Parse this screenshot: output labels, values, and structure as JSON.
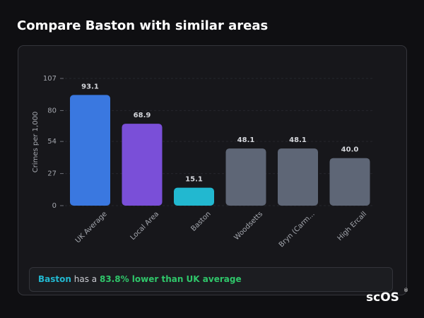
{
  "page_title": "Compare Baston with similar areas",
  "chart_data": {
    "type": "bar",
    "y_label": "Crimes per 1,000",
    "categories": [
      "UK Average",
      "Local Area",
      "Baston",
      "Woodsetts",
      "Bryn (Carm...",
      "High Ercall"
    ],
    "values": [
      93.1,
      68.9,
      15.1,
      48.1,
      48.1,
      40.0
    ],
    "value_labels": [
      "93.1",
      "68.9",
      "15.1",
      "48.1",
      "48.1",
      "40.0"
    ],
    "colors": [
      "#3a78e0",
      "#7a4fd8",
      "#22b8d0",
      "#5e6676",
      "#5e6676",
      "#5e6676"
    ],
    "ylim": [
      0,
      107
    ],
    "yticks": [
      0,
      27,
      54,
      80,
      107
    ],
    "grid": true
  },
  "summary": {
    "area": "Baston",
    "text": "has a",
    "highlight": "83.8% lower than UK average"
  },
  "logo": {
    "text": "scOS",
    "mark": "®"
  }
}
